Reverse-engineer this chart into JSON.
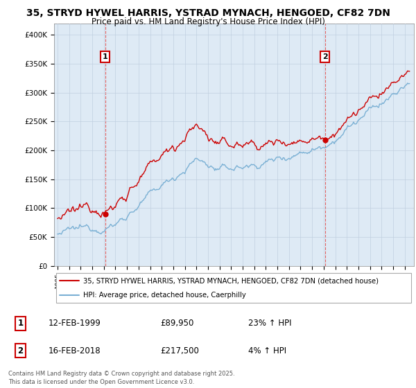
{
  "title1": "35, STRYD HYWEL HARRIS, YSTRAD MYNACH, HENGOED, CF82 7DN",
  "title2": "Price paid vs. HM Land Registry's House Price Index (HPI)",
  "ylim": [
    0,
    420000
  ],
  "yticks": [
    0,
    50000,
    100000,
    150000,
    200000,
    250000,
    300000,
    350000,
    400000
  ],
  "ytick_labels": [
    "£0",
    "£50K",
    "£100K",
    "£150K",
    "£200K",
    "£250K",
    "£300K",
    "£350K",
    "£400K"
  ],
  "sale1_year": 1999.12,
  "sale1_price": 89950,
  "sale2_year": 2018.12,
  "sale2_price": 217500,
  "vline_color": "#e06060",
  "red_line_color": "#cc0000",
  "blue_line_color": "#7ab0d4",
  "plot_bg_color": "#deeaf5",
  "legend_label_red": "35, STRYD HYWEL HARRIS, YSTRAD MYNACH, HENGOED, CF82 7DN (detached house)",
  "legend_label_blue": "HPI: Average price, detached house, Caerphilly",
  "footer1": "Contains HM Land Registry data © Crown copyright and database right 2025.",
  "footer2": "This data is licensed under the Open Government Licence v3.0.",
  "table_row1": [
    "1",
    "12-FEB-1999",
    "£89,950",
    "23% ↑ HPI"
  ],
  "table_row2": [
    "2",
    "16-FEB-2018",
    "£217,500",
    "4% ↑ HPI"
  ],
  "background_color": "#ffffff",
  "grid_color": "#c0cfe0"
}
